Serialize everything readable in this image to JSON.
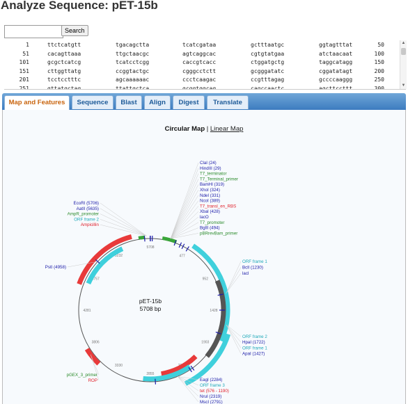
{
  "page_title": "Analyze Sequence: pET-15b",
  "search": {
    "value": "",
    "button": "Search"
  },
  "sequence_rows": [
    {
      "start": "1",
      "chunks": [
        "ttctcatgtt",
        "tgacagctta",
        "tcatcgataa",
        "gctttaatgc",
        "ggtagtttat"
      ],
      "end": "50"
    },
    {
      "start": "51",
      "chunks": [
        "cacagttaaa",
        "ttgctaacgc",
        "agtcaggcac",
        "cgtgtatgaa",
        "atctaacaat"
      ],
      "end": "100"
    },
    {
      "start": "101",
      "chunks": [
        "gcgctcatcg",
        "tcatcctcgg",
        "caccgtcacc",
        "ctggatgctg",
        "taggcatagg"
      ],
      "end": "150"
    },
    {
      "start": "151",
      "chunks": [
        "cttggttatg",
        "ccggtactgc",
        "cgggcctctt",
        "gcgggatatc",
        "cggatatagt"
      ],
      "end": "200"
    },
    {
      "start": "201",
      "chunks": [
        "tcctcctttc",
        "agcaaaaaac",
        "ccctcaagac",
        "ccgtttagag",
        "gccccaaggg"
      ],
      "end": "250"
    },
    {
      "start": "251",
      "chunks": [
        "gttatgctag",
        "ttattgctca",
        "gcggtggcag",
        "cagccaactc",
        "agcttccttt"
      ],
      "end": "300"
    }
  ],
  "tabs": [
    {
      "label": "Map and Features"
    },
    {
      "label": "Sequence"
    },
    {
      "label": "Blast"
    },
    {
      "label": "Align"
    },
    {
      "label": "Digest"
    },
    {
      "label": "Translate"
    }
  ],
  "map_view": {
    "circular": "Circular Map",
    "separator": "|",
    "linear": "Linear Map"
  },
  "plasmid": {
    "name": "pET-15b",
    "size": "5708 bp",
    "length": 5708
  },
  "colors": {
    "enzyme": "#1a1aa8",
    "orf": "#1ea8b8",
    "feature_green": "#2a8a2a",
    "feature_red": "#e0202a",
    "arrow_cyan": "#3fd0dc",
    "arrow_red": "#e83a3a",
    "arrow_gray": "#555555",
    "arrow_green": "#3aa63a"
  },
  "ticks": [
    "5708",
    "477",
    "952",
    "1428",
    "1903",
    "2379",
    "2855",
    "3330",
    "3806",
    "4281",
    "4757",
    "5232"
  ],
  "labels_top": [
    {
      "text": "ClaI (24)",
      "color": "enzyme"
    },
    {
      "text": "HindIII (29)",
      "color": "enzyme"
    },
    {
      "text": "T7_terminator",
      "color": "feature_green"
    },
    {
      "text": "T7_Terminal_primer",
      "color": "feature_green"
    },
    {
      "text": "BamHI (319)",
      "color": "enzyme"
    },
    {
      "text": "XhoI (324)",
      "color": "enzyme"
    },
    {
      "text": "NdeI (331)",
      "color": "enzyme"
    },
    {
      "text": "NcoI (389)",
      "color": "enzyme"
    },
    {
      "text": "T7_transl_en_RBS",
      "color": "feature_red"
    },
    {
      "text": "XbaI (428)",
      "color": "enzyme"
    },
    {
      "text": "lacO",
      "color": "enzyme"
    },
    {
      "text": "T7_promoter",
      "color": "feature_green"
    },
    {
      "text": "BglII (494)",
      "color": "enzyme"
    },
    {
      "text": "pBRrevBam_primer",
      "color": "feature_green"
    }
  ],
  "labels_left": [
    {
      "text": "EcoRI (5706)",
      "color": "enzyme"
    },
    {
      "text": "AatII (5635)",
      "color": "enzyme"
    },
    {
      "text": "AmpR_promoter",
      "color": "feature_green"
    },
    {
      "text": "ORF frame 2",
      "color": "orf"
    },
    {
      "text": "Ampicillin",
      "color": "feature_red"
    }
  ],
  "label_pst": {
    "text": "PstI (4958)",
    "color": "enzyme"
  },
  "labels_right_upper": [
    {
      "text": "ORF frame 1",
      "color": "orf"
    },
    {
      "text": "BclI (1230)",
      "color": "enzyme"
    },
    {
      "text": "lacI",
      "color": "enzyme"
    }
  ],
  "labels_right_lower": [
    {
      "text": "ORF frame 2",
      "color": "orf"
    },
    {
      "text": "HpaI (1722)",
      "color": "enzyme"
    },
    {
      "text": "ORF frame 1",
      "color": "orf"
    },
    {
      "text": "ApaI (1427)",
      "color": "enzyme"
    }
  ],
  "labels_bottom_left": [
    {
      "text": "pGEX_3_primer",
      "color": "feature_green"
    },
    {
      "text": "ROP",
      "color": "feature_red"
    }
  ],
  "labels_bottom": [
    {
      "text": "EagI (2284)",
      "color": "enzyme"
    },
    {
      "text": "ORF frame 3",
      "color": "orf"
    },
    {
      "text": "tet (576 - 1190)",
      "color": "feature_red"
    },
    {
      "text": "NruI (2319)",
      "color": "enzyme"
    },
    {
      "text": "MscI (2791)",
      "color": "enzyme"
    }
  ]
}
